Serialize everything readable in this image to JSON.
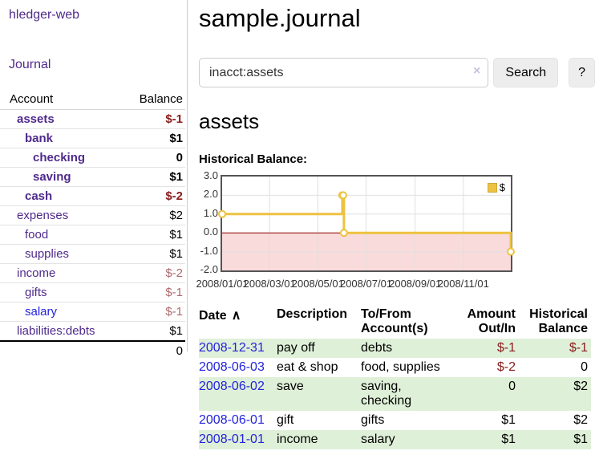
{
  "app": {
    "brand": "hledger-web"
  },
  "sidebar": {
    "journal_link": "Journal",
    "accounts": {
      "header_account": "Account",
      "header_balance": "Balance",
      "rows": [
        {
          "name": "assets",
          "balance": "$-1"
        },
        {
          "name": "bank",
          "balance": "$1"
        },
        {
          "name": "checking",
          "balance": "0"
        },
        {
          "name": "saving",
          "balance": "$1"
        },
        {
          "name": "cash",
          "balance": "$-2"
        },
        {
          "name": "expenses",
          "balance": "$2"
        },
        {
          "name": "food",
          "balance": "$1"
        },
        {
          "name": "supplies",
          "balance": "$1"
        },
        {
          "name": "income",
          "balance": "$-2"
        },
        {
          "name": "gifts",
          "balance": "$-1"
        },
        {
          "name": "salary",
          "balance": "$-1"
        },
        {
          "name": "liabilities:debts",
          "balance": "$1"
        }
      ],
      "total": "0"
    }
  },
  "main": {
    "title": "sample.journal",
    "search": {
      "value": "inacct:assets",
      "clear_icon": "×",
      "button_label": "Search",
      "help_label": "?"
    },
    "account_heading": "assets",
    "chart_heading": "Historical Balance:"
  },
  "chart_data": {
    "type": "line",
    "title": "Historical Balance",
    "step": true,
    "x_range": [
      "2008-01-01",
      "2008-12-31"
    ],
    "ylim": [
      -2,
      3
    ],
    "y_ticks": [
      "3.0",
      "2.0",
      "1.0",
      "0.0",
      "-1.0",
      "-2.0"
    ],
    "x_ticks": [
      "2008/01/01",
      "2008/03/01",
      "2008/05/01",
      "2008/07/01",
      "2008/09/01",
      "2008/11/01"
    ],
    "series": [
      {
        "name": "$",
        "color": "#EDC240",
        "points": [
          [
            "2008-01-01",
            1
          ],
          [
            "2008-06-01",
            2
          ],
          [
            "2008-06-02",
            2
          ],
          [
            "2008-06-03",
            0
          ],
          [
            "2008-12-31",
            -1
          ]
        ]
      }
    ],
    "legend_position": "top-right",
    "grid": true,
    "grid_color": "#e0e0e0",
    "zero_line_color": "#8b0000",
    "negative_region_fill": "#f9dbdb",
    "plot_border_color": "#545454"
  },
  "register": {
    "sort_icon": "∧",
    "headers": {
      "date": "Date",
      "description": "Description",
      "tofrom": "To/From Account(s)",
      "amount": "Amount Out/In",
      "balance": "Historical Balance"
    },
    "rows": [
      {
        "date": "2008-12-31",
        "description": "pay off",
        "tofrom": "debts",
        "amount": "$-1",
        "balance": "$-1"
      },
      {
        "date": "2008-06-03",
        "description": "eat & shop",
        "tofrom": "food, supplies",
        "amount": "$-2",
        "balance": "0"
      },
      {
        "date": "2008-06-02",
        "description": "save",
        "tofrom": "saving, checking",
        "amount": "0",
        "balance": "$2"
      },
      {
        "date": "2008-06-01",
        "description": "gift",
        "tofrom": "gifts",
        "amount": "$1",
        "balance": "$2"
      },
      {
        "date": "2008-01-01",
        "description": "income",
        "tofrom": "salary",
        "amount": "$1",
        "balance": "$1"
      }
    ]
  },
  "colors": {
    "link_purple": "#4f2a8c",
    "link_blue": "#2323dd",
    "negative_strong": "#8b1b1b",
    "negative_muted": "#ad6a6e",
    "row_green": "#dff0d8",
    "series_gold": "#EDC240"
  }
}
